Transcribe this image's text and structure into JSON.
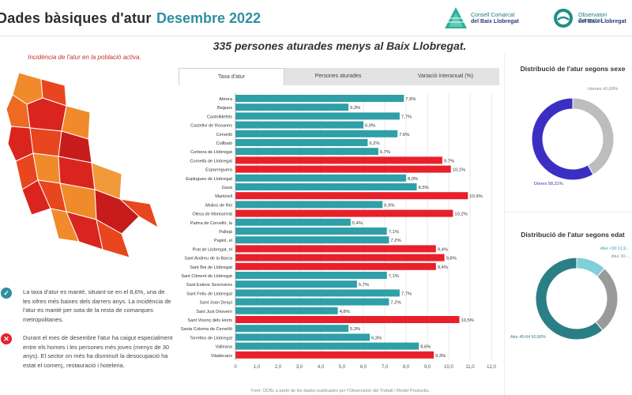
{
  "header": {
    "title": "Dades bàsiques d'atur",
    "month": "Desembre 2022",
    "logo1_line1": "Consell Comarcal",
    "logo1_line2": "del Baix Llobregat",
    "logo2_line1": "Observatori Comarcal",
    "logo2_line2": "del Baix Llobregat"
  },
  "headline": "335 persones aturades menys al Baix Llobregat.",
  "map": {
    "caption": "Incidència de l'atur en la població activa."
  },
  "notes": [
    {
      "icon": "check-icon",
      "symbol": "✓",
      "color": "#2f8fa0",
      "text": "La taxa d'atur es manté, situant-se en el 8,6%, una de les xifres més baixes dels darrers anys. La incidència de l'atur es manté per sota de la resta de comarques metropolitanes."
    },
    {
      "icon": "cross-icon",
      "symbol": "✕",
      "color": "#e8202a",
      "text": "Durant el mes de desembre l'atur ha caigut especialment entre els homes i les persones més joves (menys de 30 anys). El sector on més ha disminuït la desocupació ha estat el comerç, restauració i hoteleria."
    }
  ],
  "tabs": [
    {
      "label": "Taxa d'atur",
      "active": true
    },
    {
      "label": "Persones aturades",
      "active": false
    },
    {
      "label": "Variació interanual (%)",
      "active": false
    }
  ],
  "colors": {
    "teal": "#2f9fa8",
    "red": "#e8202a",
    "navy": "#3a2fc2",
    "grey": "#bdbdbd",
    "darkgrey": "#9a9a9a",
    "darkteal": "#2a7f86",
    "lightteal": "#7fd0d8"
  },
  "chart_data": {
    "type": "bar",
    "orientation": "horizontal",
    "categories": [
      "Abrera",
      "Begues",
      "Castelldefels",
      "Castellví de Rosanes",
      "Cervelló",
      "Collbató",
      "Corbera de Llobregat",
      "Cornellà de Llobregat",
      "Esparreguera",
      "Esplugues de Llobregat",
      "Gavà",
      "Martorell",
      "Molins de Rei",
      "Olesa de Montserrat",
      "Palma de Cervelló, la",
      "Pallejà",
      "Papiol, el",
      "Prat de Llobregat, el",
      "Sant Andreu de la Barca",
      "Sant Boi de Llobregat",
      "Sant Climent de Llobregat",
      "Sant Esteve Sesrovires",
      "Sant Feliu de Llobregat",
      "Sant Joan Despí",
      "Sant Just Desvern",
      "Sant Vicenç dels Horts",
      "Santa Coloma de Cervelló",
      "Torrelles de Llobregat",
      "Vallirana",
      "Viladecans"
    ],
    "values": [
      7.9,
      5.3,
      7.7,
      6.0,
      7.6,
      6.2,
      6.7,
      9.7,
      10.1,
      8.0,
      8.5,
      10.9,
      6.9,
      10.2,
      5.4,
      7.1,
      7.2,
      9.4,
      9.8,
      9.4,
      7.1,
      5.7,
      7.7,
      7.2,
      4.8,
      10.5,
      5.3,
      6.3,
      8.6,
      9.3
    ],
    "labels": [
      "7,9%",
      "5,3%",
      "7,7%",
      "6,0%",
      "7,6%",
      "6,2%",
      "6,7%",
      "9,7%",
      "10,1%",
      "8,0%",
      "8,5%",
      "10,9%",
      "6,9%",
      "10,2%",
      "5,4%",
      "7,1%",
      "7,2%",
      "9,4%",
      "9,8%",
      "9,4%",
      "7,1%",
      "5,7%",
      "7,7%",
      "7,2%",
      "4,8%",
      "10,5%",
      "5,3%",
      "6,3%",
      "8,6%",
      "9,3%"
    ],
    "above_average": [
      false,
      false,
      false,
      false,
      false,
      false,
      false,
      true,
      true,
      false,
      false,
      true,
      false,
      true,
      false,
      false,
      false,
      true,
      true,
      true,
      false,
      false,
      false,
      false,
      false,
      true,
      false,
      false,
      false,
      true
    ],
    "xlim": [
      0,
      12
    ],
    "xticks": [
      "0",
      "1,0",
      "2,0",
      "3,0",
      "4,0",
      "5,0",
      "6,0",
      "7,0",
      "8,0",
      "9,0",
      "10,0",
      "11,0",
      "12,0"
    ],
    "source": "Font: OCBL a partir de les dades publicades per l'Observatori del Treball i Model Productiu."
  },
  "sex_chart": {
    "type": "pie",
    "title": "Distribució de l'atur segons sexe",
    "segments": [
      {
        "label": "Homes 41,69%",
        "value": 41.69
      },
      {
        "label": "Dones 58,31%",
        "value": 58.31
      }
    ]
  },
  "age_chart": {
    "type": "pie",
    "title": "Distribució de l'atur segons edat",
    "segments": [
      {
        "label": "Atur <30 11,9...",
        "value": 11.9
      },
      {
        "label": "Atur 30-...",
        "value": 27.2
      },
      {
        "label": "Atur 45-64 60,90%",
        "value": 60.9
      }
    ]
  }
}
